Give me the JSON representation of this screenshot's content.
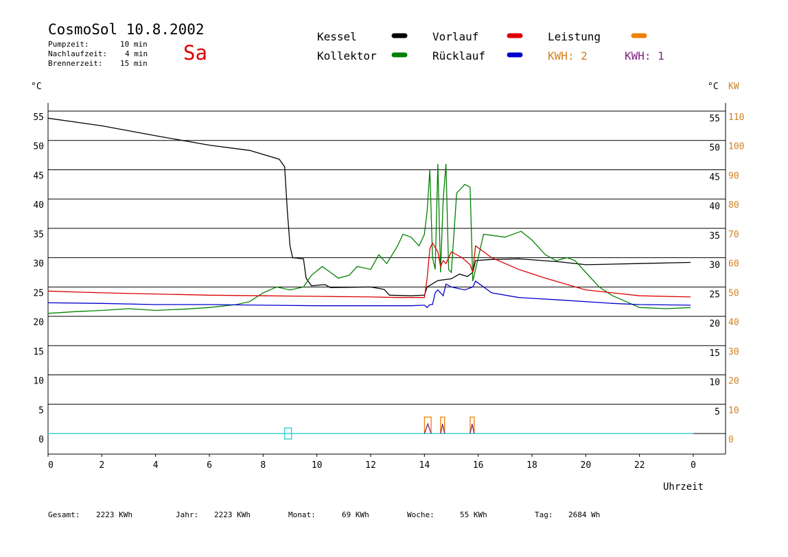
{
  "header": {
    "title": "CosmoSol 10.8.2002",
    "day": "Sa",
    "pump_label": "Pumpzeit:",
    "pump_value": "10 min",
    "nachlauf_label": "Nachlaufzeit:",
    "nachlauf_value": "4 min",
    "brenner_label": "Brennerzeit:",
    "brenner_value": "15 min"
  },
  "legend": {
    "kessel": "Kessel",
    "kollektor": "Kollektor",
    "vorlauf": "Vorlauf",
    "ruecklauf": "Rücklauf",
    "leistung": "Leistung",
    "kwh2": "KWH: 2",
    "kwh1": "KWH: 1"
  },
  "colors": {
    "kessel": "#000000",
    "kollektor": "#008000",
    "vorlauf": "#dd0000",
    "ruecklauf": "#0000cc",
    "leistung": "#f08000",
    "kwh2": "#d08020",
    "kwh1": "#802080",
    "pumpe": "#40d0d0",
    "axis_right_kw": "#d08020"
  },
  "axes": {
    "left_unit": "°C",
    "right_unit": "°C",
    "right_kw_unit": "KW",
    "x_label": "Uhrzeit"
  },
  "footer": {
    "gesamt_label": "Gesamt:",
    "gesamt_value": "2223 KWh",
    "jahr_label": "Jahr:",
    "jahr_value": "2223 KWh",
    "monat_label": "Monat:",
    "monat_value": "69 KWh",
    "woche_label": "Woche:",
    "woche_value": "55 KWh",
    "tag_label": "Tag:",
    "tag_value": "2684 Wh"
  },
  "chart_data": {
    "type": "line",
    "x_ticks": [
      "0",
      "2",
      "4",
      "6",
      "8",
      "10",
      "12",
      "14",
      "16",
      "18",
      "20",
      "22",
      "0"
    ],
    "y_ticks_left": [
      "0",
      "5",
      "10",
      "15",
      "20",
      "25",
      "30",
      "35",
      "40",
      "45",
      "50",
      "55"
    ],
    "y_ticks_right_c": [
      "5",
      "10",
      "15",
      "20",
      "25",
      "30",
      "35",
      "40",
      "45",
      "50",
      "55"
    ],
    "y_ticks_right_kw": [
      "0",
      "10",
      "20",
      "30",
      "40",
      "50",
      "60",
      "70",
      "80",
      "90",
      "100",
      "110"
    ],
    "xlim": [
      0,
      24
    ],
    "ylim": [
      -3.5,
      55
    ],
    "grid": true,
    "legend_position": "top",
    "series": [
      {
        "name": "Kessel",
        "points": [
          [
            0,
            53.8
          ],
          [
            2,
            52.5
          ],
          [
            4,
            50.8
          ],
          [
            6,
            49.2
          ],
          [
            7.5,
            48.3
          ],
          [
            8.6,
            46.8
          ],
          [
            8.8,
            45.5
          ],
          [
            8.9,
            38
          ],
          [
            9.0,
            32
          ],
          [
            9.1,
            30
          ],
          [
            9.5,
            29.8
          ],
          [
            9.6,
            26.5
          ],
          [
            9.8,
            25.2
          ],
          [
            10.3,
            25.4
          ],
          [
            10.5,
            24.9
          ],
          [
            12.0,
            25.0
          ],
          [
            12.5,
            24.6
          ],
          [
            12.7,
            23.6
          ],
          [
            13.5,
            23.5
          ],
          [
            14.0,
            23.6
          ],
          [
            14.1,
            25
          ],
          [
            14.5,
            26.1
          ],
          [
            15.0,
            26.4
          ],
          [
            15.3,
            27.2
          ],
          [
            15.6,
            26.8
          ],
          [
            15.8,
            27.5
          ],
          [
            15.9,
            29.5
          ],
          [
            16.5,
            29.7
          ],
          [
            17.5,
            29.8
          ],
          [
            19.0,
            29.3
          ],
          [
            20.0,
            28.8
          ],
          [
            22.0,
            29.0
          ],
          [
            23.9,
            29.2
          ]
        ]
      },
      {
        "name": "Kollektor",
        "points": [
          [
            0,
            20.5
          ],
          [
            1,
            20.8
          ],
          [
            2,
            21.0
          ],
          [
            3,
            21.3
          ],
          [
            4,
            21.0
          ],
          [
            5,
            21.2
          ],
          [
            6,
            21.5
          ],
          [
            7,
            22.0
          ],
          [
            7.5,
            22.5
          ],
          [
            8.0,
            24.0
          ],
          [
            8.5,
            25.0
          ],
          [
            9.0,
            24.5
          ],
          [
            9.5,
            25.0
          ],
          [
            9.8,
            27.0
          ],
          [
            10.2,
            28.5
          ],
          [
            10.5,
            27.5
          ],
          [
            10.8,
            26.5
          ],
          [
            11.2,
            27.0
          ],
          [
            11.5,
            28.5
          ],
          [
            12.0,
            28.0
          ],
          [
            12.3,
            30.5
          ],
          [
            12.6,
            29.0
          ],
          [
            13.0,
            32.0
          ],
          [
            13.2,
            34.0
          ],
          [
            13.5,
            33.5
          ],
          [
            13.8,
            32.0
          ],
          [
            14.0,
            34.0
          ],
          [
            14.1,
            38.0
          ],
          [
            14.2,
            45.0
          ],
          [
            14.3,
            30.0
          ],
          [
            14.4,
            28.0
          ],
          [
            14.5,
            46.0
          ],
          [
            14.6,
            27.5
          ],
          [
            14.7,
            40.0
          ],
          [
            14.8,
            46.0
          ],
          [
            14.9,
            28.0
          ],
          [
            15.0,
            27.5
          ],
          [
            15.2,
            41.0
          ],
          [
            15.5,
            42.5
          ],
          [
            15.7,
            42.0
          ],
          [
            15.8,
            26.0
          ],
          [
            16.0,
            30.0
          ],
          [
            16.2,
            34.0
          ],
          [
            17.0,
            33.5
          ],
          [
            17.6,
            34.5
          ],
          [
            18.0,
            33.0
          ],
          [
            18.5,
            30.5
          ],
          [
            18.9,
            29.5
          ],
          [
            19.3,
            30.0
          ],
          [
            19.6,
            29.5
          ],
          [
            20.0,
            27.5
          ],
          [
            20.5,
            25.0
          ],
          [
            21.0,
            23.5
          ],
          [
            21.5,
            22.5
          ],
          [
            22.0,
            21.5
          ],
          [
            23.0,
            21.3
          ],
          [
            23.9,
            21.5
          ]
        ]
      },
      {
        "name": "Vorlauf",
        "points": [
          [
            0,
            24.3
          ],
          [
            2,
            24.0
          ],
          [
            4,
            23.8
          ],
          [
            6,
            23.6
          ],
          [
            8,
            23.5
          ],
          [
            10,
            23.4
          ],
          [
            12,
            23.3
          ],
          [
            13,
            23.2
          ],
          [
            14.0,
            23.2
          ],
          [
            14.1,
            26.5
          ],
          [
            14.2,
            31.5
          ],
          [
            14.3,
            32.5
          ],
          [
            14.5,
            31.0
          ],
          [
            14.6,
            28.5
          ],
          [
            14.7,
            29.5
          ],
          [
            14.8,
            29.0
          ],
          [
            15.0,
            31.0
          ],
          [
            15.4,
            30.0
          ],
          [
            15.7,
            28.8
          ],
          [
            15.8,
            27.5
          ],
          [
            15.9,
            32.0
          ],
          [
            16.5,
            30.0
          ],
          [
            17.5,
            28.0
          ],
          [
            18.5,
            26.5
          ],
          [
            20.0,
            24.5
          ],
          [
            22.0,
            23.5
          ],
          [
            23.9,
            23.3
          ]
        ]
      },
      {
        "name": "Rücklauf",
        "points": [
          [
            0,
            22.3
          ],
          [
            2,
            22.2
          ],
          [
            4,
            22.0
          ],
          [
            6,
            22.0
          ],
          [
            8,
            21.9
          ],
          [
            10,
            21.8
          ],
          [
            12,
            21.8
          ],
          [
            13.5,
            21.8
          ],
          [
            14.0,
            21.9
          ],
          [
            14.1,
            21.5
          ],
          [
            14.2,
            22.0
          ],
          [
            14.3,
            22.0
          ],
          [
            14.4,
            24.0
          ],
          [
            14.5,
            24.5
          ],
          [
            14.6,
            24.0
          ],
          [
            14.7,
            23.5
          ],
          [
            14.8,
            25.5
          ],
          [
            15.0,
            25.0
          ],
          [
            15.5,
            24.5
          ],
          [
            15.8,
            25.0
          ],
          [
            15.9,
            26.0
          ],
          [
            16.5,
            24.0
          ],
          [
            17.5,
            23.2
          ],
          [
            19.0,
            22.8
          ],
          [
            21.0,
            22.2
          ],
          [
            22.0,
            22.0
          ],
          [
            23.9,
            21.9
          ]
        ]
      }
    ]
  }
}
